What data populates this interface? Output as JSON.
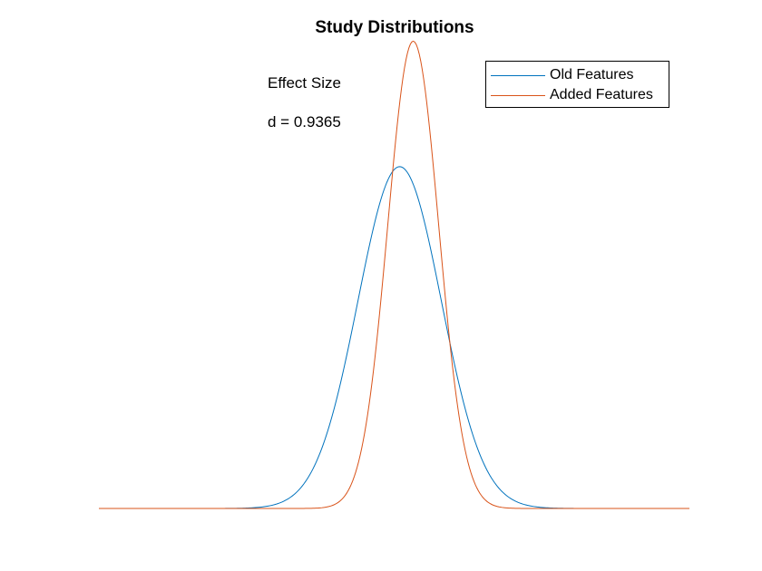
{
  "chart_data": {
    "type": "line",
    "title": "Study Distributions",
    "xlabel": "",
    "ylabel": "",
    "xlim": [
      0,
      1
    ],
    "ylim": [
      0,
      1.1
    ],
    "axes_visible": false,
    "grid": false,
    "legend_location": "top-right",
    "annotations": [
      "Effect Size",
      "d = 0.9365"
    ],
    "series": [
      {
        "name": "Old Features",
        "color": "#0072BD",
        "peak_x": 0.5093,
        "peak_y": 0.782,
        "width_sigma": 0.0707
      },
      {
        "name": "Added Features",
        "color": "#D95319",
        "peak_x": 0.5323,
        "peak_y": 1.069,
        "width_sigma": 0.0431
      }
    ]
  }
}
